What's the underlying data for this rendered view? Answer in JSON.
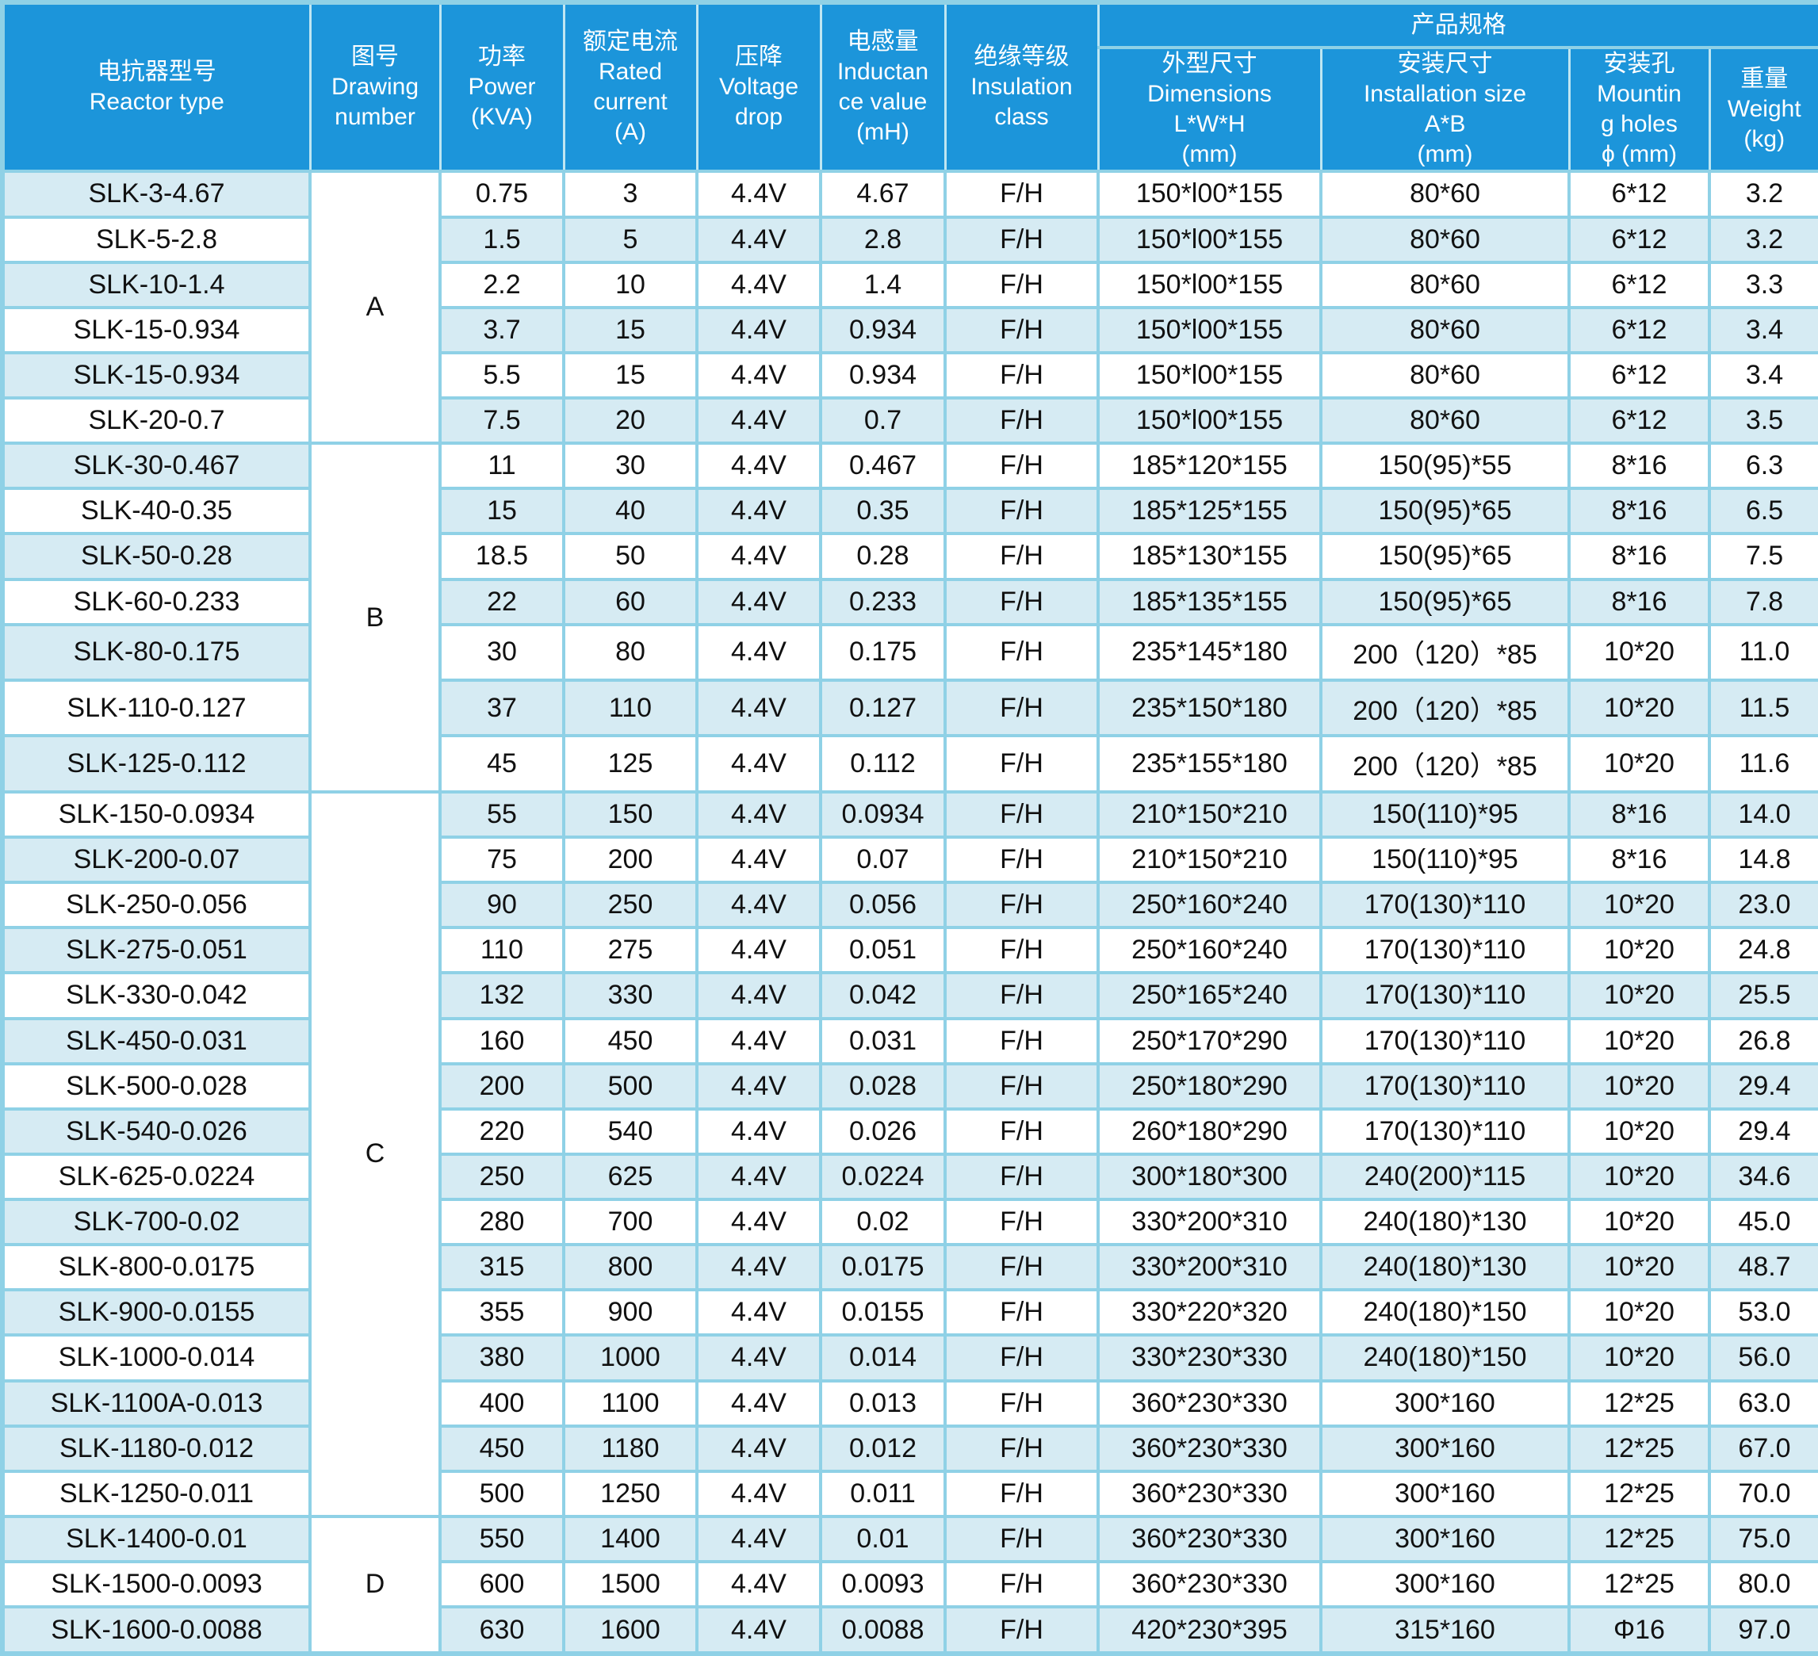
{
  "colors": {
    "header_bg": "#1c95da",
    "row_alt_bg": "#d6ebf3",
    "grid": "#8fd1e6",
    "header_grid": "#bfe6f2",
    "text": "#111111",
    "header_text": "#ffffff"
  },
  "table": {
    "headers": {
      "reactor_type": "电抗器型号\nReactor type",
      "drawing_number": "图号\nDrawing\nnumber",
      "power": "功率\nPower\n(KVA)",
      "rated_current": "额定电流\nRated\ncurrent\n(A)",
      "voltage_drop": "压降\nVoltage\ndrop",
      "inductance": "电感量\nInductan\nce value\n(mH)",
      "insulation": "绝缘等级\nInsulation\nclass",
      "product_spec": "产品规格",
      "dimensions": "外型尺寸\nDimensions\nL*W*H\n(mm)",
      "installation": "安装尺寸\nInstallation size\nA*B\n(mm)",
      "mounting_holes": "安装孔\nMountin\ng holes\nϕ (mm)",
      "weight": "重量\nWeight\n(kg)"
    },
    "groups": [
      {
        "label": "A",
        "start": 0,
        "count": 6
      },
      {
        "label": "B",
        "start": 6,
        "count": 7
      },
      {
        "label": "C",
        "start": 13,
        "count": 16
      },
      {
        "label": "D",
        "start": 29,
        "count": 3
      }
    ],
    "rows": [
      {
        "type": "SLK-3-4.67",
        "power": "0.75",
        "current": "3",
        "drop": "4.4V",
        "ind": "4.67",
        "ins": "F/H",
        "dim": "150*l00*155",
        "inst": "80*60",
        "hole": "6*12",
        "wt": "3.2",
        "ns": true,
        "ds": false
      },
      {
        "type": "SLK-5-2.8",
        "power": "1.5",
        "current": "5",
        "drop": "4.4V",
        "ind": "2.8",
        "ins": "F/H",
        "dim": "150*l00*155",
        "inst": "80*60",
        "hole": "6*12",
        "wt": "3.2",
        "ns": false,
        "ds": true
      },
      {
        "type": "SLK-10-1.4",
        "power": "2.2",
        "current": "10",
        "drop": "4.4V",
        "ind": "1.4",
        "ins": "F/H",
        "dim": "150*l00*155",
        "inst": "80*60",
        "hole": "6*12",
        "wt": "3.3",
        "ns": true,
        "ds": false
      },
      {
        "type": "SLK-15-0.934",
        "power": "3.7",
        "current": "15",
        "drop": "4.4V",
        "ind": "0.934",
        "ins": "F/H",
        "dim": "150*l00*155",
        "inst": "80*60",
        "hole": "6*12",
        "wt": "3.4",
        "ns": false,
        "ds": true
      },
      {
        "type": "SLK-15-0.934",
        "power": "5.5",
        "current": "15",
        "drop": "4.4V",
        "ind": "0.934",
        "ins": "F/H",
        "dim": "150*l00*155",
        "inst": "80*60",
        "hole": "6*12",
        "wt": "3.4",
        "ns": true,
        "ds": false
      },
      {
        "type": "SLK-20-0.7",
        "power": "7.5",
        "current": "20",
        "drop": "4.4V",
        "ind": "0.7",
        "ins": "F/H",
        "dim": "150*l00*155",
        "inst": "80*60",
        "hole": "6*12",
        "wt": "3.5",
        "ns": false,
        "ds": true
      },
      {
        "type": "SLK-30-0.467",
        "power": "11",
        "current": "30",
        "drop": "4.4V",
        "ind": "0.467",
        "ins": "F/H",
        "dim": "185*120*155",
        "inst": "150(95)*55",
        "hole": "8*16",
        "wt": "6.3",
        "ns": true,
        "ds": false
      },
      {
        "type": "SLK-40-0.35",
        "power": "15",
        "current": "40",
        "drop": "4.4V",
        "ind": "0.35",
        "ins": "F/H",
        "dim": "185*125*155",
        "inst": "150(95)*65",
        "hole": "8*16",
        "wt": "6.5",
        "ns": false,
        "ds": true
      },
      {
        "type": "SLK-50-0.28",
        "power": "18.5",
        "current": "50",
        "drop": "4.4V",
        "ind": "0.28",
        "ins": "F/H",
        "dim": "185*130*155",
        "inst": "150(95)*65",
        "hole": "8*16",
        "wt": "7.5",
        "ns": true,
        "ds": false
      },
      {
        "type": "SLK-60-0.233",
        "power": "22",
        "current": "60",
        "drop": "4.4V",
        "ind": "0.233",
        "ins": "F/H",
        "dim": "185*135*155",
        "inst": "150(95)*65",
        "hole": "8*16",
        "wt": "7.8",
        "ns": false,
        "ds": true
      },
      {
        "type": "SLK-80-0.175",
        "power": "30",
        "current": "80",
        "drop": "4.4V",
        "ind": "0.175",
        "ins": "F/H",
        "dim": "235*145*180",
        "inst": "200（120）*85",
        "hole": "10*20",
        "wt": "11.0",
        "ns": true,
        "ds": false
      },
      {
        "type": "SLK-110-0.127",
        "power": "37",
        "current": "110",
        "drop": "4.4V",
        "ind": "0.127",
        "ins": "F/H",
        "dim": "235*150*180",
        "inst": "200（120）*85",
        "hole": "10*20",
        "wt": "11.5",
        "ns": false,
        "ds": true
      },
      {
        "type": "SLK-125-0.112",
        "power": "45",
        "current": "125",
        "drop": "4.4V",
        "ind": "0.112",
        "ins": "F/H",
        "dim": "235*155*180",
        "inst": "200（120）*85",
        "hole": "10*20",
        "wt": "11.6",
        "ns": true,
        "ds": false
      },
      {
        "type": "SLK-150-0.0934",
        "power": "55",
        "current": "150",
        "drop": "4.4V",
        "ind": "0.0934",
        "ins": "F/H",
        "dim": "210*150*210",
        "inst": "150(110)*95",
        "hole": "8*16",
        "wt": "14.0",
        "ns": false,
        "ds": true
      },
      {
        "type": "SLK-200-0.07",
        "power": "75",
        "current": "200",
        "drop": "4.4V",
        "ind": "0.07",
        "ins": "F/H",
        "dim": "210*150*210",
        "inst": "150(110)*95",
        "hole": "8*16",
        "wt": "14.8",
        "ns": true,
        "ds": false
      },
      {
        "type": "SLK-250-0.056",
        "power": "90",
        "current": "250",
        "drop": "4.4V",
        "ind": "0.056",
        "ins": "F/H",
        "dim": "250*160*240",
        "inst": "170(130)*110",
        "hole": "10*20",
        "wt": "23.0",
        "ns": false,
        "ds": true
      },
      {
        "type": "SLK-275-0.051",
        "power": "110",
        "current": "275",
        "drop": "4.4V",
        "ind": "0.051",
        "ins": "F/H",
        "dim": "250*160*240",
        "inst": "170(130)*110",
        "hole": "10*20",
        "wt": "24.8",
        "ns": true,
        "ds": false
      },
      {
        "type": "SLK-330-0.042",
        "power": "132",
        "current": "330",
        "drop": "4.4V",
        "ind": "0.042",
        "ins": "F/H",
        "dim": "250*165*240",
        "inst": "170(130)*110",
        "hole": "10*20",
        "wt": "25.5",
        "ns": false,
        "ds": true
      },
      {
        "type": "SLK-450-0.031",
        "power": "160",
        "current": "450",
        "drop": "4.4V",
        "ind": "0.031",
        "ins": "F/H",
        "dim": "250*170*290",
        "inst": "170(130)*110",
        "hole": "10*20",
        "wt": "26.8",
        "ns": true,
        "ds": false
      },
      {
        "type": "SLK-500-0.028",
        "power": "200",
        "current": "500",
        "drop": "4.4V",
        "ind": "0.028",
        "ins": "F/H",
        "dim": "250*180*290",
        "inst": "170(130)*110",
        "hole": "10*20",
        "wt": "29.4",
        "ns": false,
        "ds": true
      },
      {
        "type": "SLK-540-0.026",
        "power": "220",
        "current": "540",
        "drop": "4.4V",
        "ind": "0.026",
        "ins": "F/H",
        "dim": "260*180*290",
        "inst": "170(130)*110",
        "hole": "10*20",
        "wt": "29.4",
        "ns": true,
        "ds": false
      },
      {
        "type": "SLK-625-0.0224",
        "power": "250",
        "current": "625",
        "drop": "4.4V",
        "ind": "0.0224",
        "ins": "F/H",
        "dim": "300*180*300",
        "inst": "240(200)*115",
        "hole": "10*20",
        "wt": "34.6",
        "ns": false,
        "ds": true
      },
      {
        "type": "SLK-700-0.02",
        "power": "280",
        "current": "700",
        "drop": "4.4V",
        "ind": "0.02",
        "ins": "F/H",
        "dim": "330*200*310",
        "inst": "240(180)*130",
        "hole": "10*20",
        "wt": "45.0",
        "ns": true,
        "ds": false
      },
      {
        "type": "SLK-800-0.0175",
        "power": "315",
        "current": "800",
        "drop": "4.4V",
        "ind": "0.0175",
        "ins": "F/H",
        "dim": "330*200*310",
        "inst": "240(180)*130",
        "hole": "10*20",
        "wt": "48.7",
        "ns": false,
        "ds": true
      },
      {
        "type": "SLK-900-0.0155",
        "power": "355",
        "current": "900",
        "drop": "4.4V",
        "ind": "0.0155",
        "ins": "F/H",
        "dim": "330*220*320",
        "inst": "240(180)*150",
        "hole": "10*20",
        "wt": "53.0",
        "ns": true,
        "ds": false
      },
      {
        "type": "SLK-1000-0.014",
        "power": "380",
        "current": "1000",
        "drop": "4.4V",
        "ind": "0.014",
        "ins": "F/H",
        "dim": "330*230*330",
        "inst": "240(180)*150",
        "hole": "10*20",
        "wt": "56.0",
        "ns": false,
        "ds": true
      },
      {
        "type": "SLK-1100A-0.013",
        "power": "400",
        "current": "1100",
        "drop": "4.4V",
        "ind": "0.013",
        "ins": "F/H",
        "dim": "360*230*330",
        "inst": "300*160",
        "hole": "12*25",
        "wt": "63.0",
        "ns": true,
        "ds": false
      },
      {
        "type": "SLK-1180-0.012",
        "power": "450",
        "current": "1180",
        "drop": "4.4V",
        "ind": "0.012",
        "ins": "F/H",
        "dim": "360*230*330",
        "inst": "300*160",
        "hole": "12*25",
        "wt": "67.0",
        "ns": true,
        "ds": true
      },
      {
        "type": "SLK-1250-0.011",
        "power": "500",
        "current": "1250",
        "drop": "4.4V",
        "ind": "0.011",
        "ins": "F/H",
        "dim": "360*230*330",
        "inst": "300*160",
        "hole": "12*25",
        "wt": "70.0",
        "ns": false,
        "ds": false
      },
      {
        "type": "SLK-1400-0.01",
        "power": "550",
        "current": "1400",
        "drop": "4.4V",
        "ind": "0.01",
        "ins": "F/H",
        "dim": "360*230*330",
        "inst": "300*160",
        "hole": "12*25",
        "wt": "75.0",
        "ns": true,
        "ds": true
      },
      {
        "type": "SLK-1500-0.0093",
        "power": "600",
        "current": "1500",
        "drop": "4.4V",
        "ind": "0.0093",
        "ins": "F/H",
        "dim": "360*230*330",
        "inst": "300*160",
        "hole": "12*25",
        "wt": "80.0",
        "ns": false,
        "ds": false
      },
      {
        "type": "SLK-1600-0.0088",
        "power": "630",
        "current": "1600",
        "drop": "4.4V",
        "ind": "0.0088",
        "ins": "F/H",
        "dim": "420*230*395",
        "inst": "315*160",
        "hole": "Φ16",
        "wt": "97.0",
        "ns": true,
        "ds": true
      }
    ]
  }
}
